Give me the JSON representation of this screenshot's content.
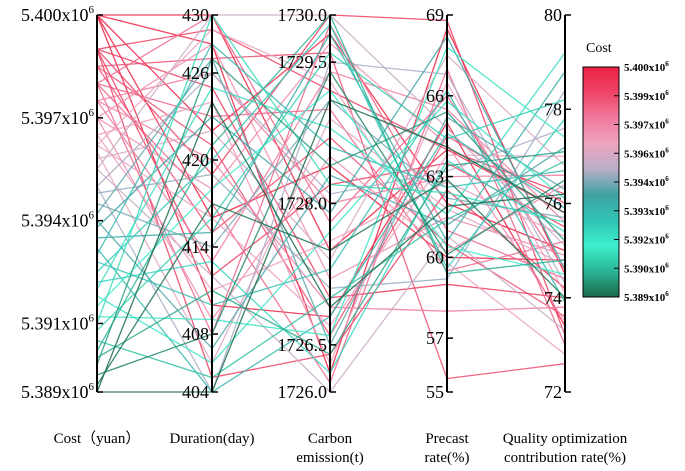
{
  "chart_data": {
    "type": "parallel_coordinates",
    "title": "",
    "axes": [
      {
        "name": "cost",
        "label_lines": [
          "Cost（yuan）"
        ],
        "min": 5.389,
        "max": 5.4,
        "ticks": [
          {
            "value": 5.4,
            "base": "5.400x10",
            "exp": "6"
          },
          {
            "value": 5.397,
            "base": "5.397x10",
            "exp": "6"
          },
          {
            "value": 5.394,
            "base": "5.394x10",
            "exp": "6"
          },
          {
            "value": 5.391,
            "base": "5.391x10",
            "exp": "6"
          },
          {
            "value": 5.389,
            "base": "5.389x10",
            "exp": "6"
          }
        ]
      },
      {
        "name": "duration",
        "label_lines": [
          "Duration(day)"
        ],
        "min": 404,
        "max": 430,
        "ticks": [
          {
            "value": 430,
            "text": "430"
          },
          {
            "value": 426,
            "text": "426"
          },
          {
            "value": 420,
            "text": "420"
          },
          {
            "value": 414,
            "text": "414"
          },
          {
            "value": 408,
            "text": "408"
          },
          {
            "value": 404,
            "text": "404"
          }
        ]
      },
      {
        "name": "carbon",
        "label_lines": [
          "Carbon",
          "emission(t)"
        ],
        "min": 1726.0,
        "max": 1730.0,
        "ticks": [
          {
            "value": 1730.0,
            "text": "1730.0"
          },
          {
            "value": 1729.5,
            "text": "1729.5"
          },
          {
            "value": 1728.0,
            "text": "1728.0"
          },
          {
            "value": 1726.5,
            "text": "1726.5"
          },
          {
            "value": 1726.0,
            "text": "1726.0"
          }
        ]
      },
      {
        "name": "precast",
        "label_lines": [
          "Precast",
          "rate(%)"
        ],
        "min": 55,
        "max": 69,
        "ticks": [
          {
            "value": 69,
            "text": "69"
          },
          {
            "value": 66,
            "text": "66"
          },
          {
            "value": 63,
            "text": "63"
          },
          {
            "value": 60,
            "text": "60"
          },
          {
            "value": 57,
            "text": "57"
          },
          {
            "value": 55,
            "text": "55"
          }
        ]
      },
      {
        "name": "quality",
        "label_lines": [
          "Quality optimization",
          "contribution rate(%)"
        ],
        "min": 72,
        "max": 80,
        "ticks": [
          {
            "value": 80,
            "text": "80"
          },
          {
            "value": 78,
            "text": "78"
          },
          {
            "value": 76,
            "text": "76"
          },
          {
            "value": 74,
            "text": "74"
          },
          {
            "value": 72,
            "text": "72"
          }
        ]
      }
    ],
    "colorbar": {
      "title": "Cost",
      "labels": [
        {
          "base": "5.400x10",
          "exp": "6"
        },
        {
          "base": "5.399x10",
          "exp": "6"
        },
        {
          "base": "5.397x10",
          "exp": "6"
        },
        {
          "base": "5.396x10",
          "exp": "6"
        },
        {
          "base": "5.394x10",
          "exp": "6"
        },
        {
          "base": "5.393x10",
          "exp": "6"
        },
        {
          "base": "5.392x10",
          "exp": "6"
        },
        {
          "base": "5.390x10",
          "exp": "6"
        },
        {
          "base": "5.389x10",
          "exp": "6"
        }
      ],
      "stops": [
        "#ee2244",
        "#ee4466",
        "#f07a9e",
        "#f0a4c0",
        "#b8aec8",
        "#3fa3a3",
        "#2fc4b4",
        "#3ef0cc",
        "#2ab496",
        "#1a6a4a"
      ]
    },
    "series": [
      {
        "values": [
          5.4,
          430,
          1727.5,
          64,
          75.8
        ]
      },
      {
        "values": [
          5.4,
          428,
          1726.2,
          68.5,
          74.5
        ]
      },
      {
        "values": [
          5.4,
          422,
          1729.8,
          62,
          75
        ]
      },
      {
        "values": [
          5.4,
          416,
          1728.4,
          60,
          74.8
        ]
      },
      {
        "values": [
          5.4,
          410,
          1726.8,
          65,
          73.4
        ]
      },
      {
        "values": [
          5.399,
          429,
          1729.2,
          64,
          76.2
        ]
      },
      {
        "values": [
          5.399,
          425,
          1727,
          59,
          74
        ]
      },
      {
        "values": [
          5.399,
          419,
          1730,
          68.8,
          73.2
        ]
      },
      {
        "values": [
          5.399,
          412,
          1728.2,
          63.5,
          75.5
        ]
      },
      {
        "values": [
          5.399,
          405,
          1726.4,
          62.5,
          74.2
        ]
      },
      {
        "values": [
          5.3985,
          427,
          1729.6,
          55.5,
          72.6
        ]
      },
      {
        "values": [
          5.3985,
          421,
          1726.6,
          64.5,
          76
        ]
      },
      {
        "values": [
          5.3985,
          415,
          1728.7,
          60.5,
          73.6
        ]
      },
      {
        "values": [
          5.398,
          430,
          1727.8,
          66,
          74.6
        ]
      },
      {
        "values": [
          5.398,
          423,
          1729,
          59.5,
          75.2
        ]
      },
      {
        "values": [
          5.398,
          417,
          1726.1,
          67,
          73
        ]
      },
      {
        "values": [
          5.398,
          408,
          1729.9,
          61,
          74.4
        ]
      },
      {
        "values": [
          5.3975,
          426,
          1728,
          63,
          76.6
        ]
      },
      {
        "values": [
          5.3975,
          420,
          1726.9,
          58,
          73.8
        ]
      },
      {
        "values": [
          5.3975,
          413,
          1729.4,
          65.5,
          75.6
        ]
      },
      {
        "values": [
          5.397,
          428,
          1727.2,
          61.5,
          74.9
        ]
      },
      {
        "values": [
          5.397,
          418,
          1729.7,
          64.2,
          73.5
        ]
      },
      {
        "values": [
          5.397,
          409,
          1728.5,
          60.2,
          76.4
        ]
      },
      {
        "values": [
          5.3965,
          424,
          1726.3,
          66.5,
          74.1
        ]
      },
      {
        "values": [
          5.3965,
          411,
          1727.6,
          62.8,
          75.3
        ]
      },
      {
        "values": [
          5.3962,
          429,
          1729.3,
          59.8,
          72.8
        ]
      },
      {
        "values": [
          5.3962,
          416,
          1726.7,
          63.8,
          77
        ]
      },
      {
        "values": [
          5.396,
          406,
          1728.9,
          61.8,
          74.7
        ]
      },
      {
        "values": [
          5.3958,
          422,
          1727.4,
          67.5,
          76.8
        ]
      },
      {
        "values": [
          5.3955,
          430,
          1730,
          64.8,
          75.1
        ]
      },
      {
        "values": [
          5.3955,
          412,
          1726,
          60.8,
          73.3
        ]
      },
      {
        "values": [
          5.395,
          426,
          1728.1,
          63.2,
          77.6
        ]
      },
      {
        "values": [
          5.395,
          404,
          1729.5,
          66.8,
          74.3
        ]
      },
      {
        "values": [
          5.3948,
          419,
          1727.1,
          59.2,
          78.4
        ]
      },
      {
        "values": [
          5.3945,
          414,
          1729.1,
          62.2,
          75.7
        ]
      },
      {
        "values": [
          5.3942,
          427,
          1726.5,
          65.2,
          76.3
        ]
      },
      {
        "values": [
          5.394,
          407,
          1728.3,
          61.2,
          77.2
        ]
      },
      {
        "values": [
          5.3938,
          423,
          1727.9,
          68.2,
          74.6
        ]
      },
      {
        "values": [
          5.3935,
          415,
          1729.8,
          60.6,
          78.8
        ]
      },
      {
        "values": [
          5.3932,
          404,
          1726.8,
          64.6,
          75.9
        ]
      },
      {
        "values": [
          5.393,
          428,
          1728.6,
          62.6,
          76.7
        ]
      },
      {
        "values": [
          5.3928,
          410,
          1727.3,
          66.2,
          73.9
        ]
      },
      {
        "values": [
          5.3925,
          420,
          1729.9,
          59.6,
          77.8
        ]
      },
      {
        "values": [
          5.3922,
          413,
          1726.2,
          63.6,
          75.4
        ]
      },
      {
        "values": [
          5.392,
          425,
          1728.8,
          61.6,
          79.2
        ]
      },
      {
        "values": [
          5.3918,
          406,
          1727.7,
          65.8,
          76.1
        ]
      },
      {
        "values": [
          5.3915,
          418,
          1729.2,
          60.4,
          74.5
        ]
      },
      {
        "values": [
          5.3912,
          409,
          1726.6,
          67.8,
          77.4
        ]
      },
      {
        "values": [
          5.391,
          430,
          1728.2,
          62.4,
          75.6
        ]
      },
      {
        "values": [
          5.3908,
          416,
          1729.6,
          64.4,
          78.2
        ]
      },
      {
        "values": [
          5.3905,
          405,
          1727,
          61.4,
          76.9
        ]
      },
      {
        "values": [
          5.3902,
          421,
          1730,
          59.4,
          74.8
        ]
      },
      {
        "values": [
          5.39,
          411,
          1726.4,
          63.4,
          77.1
        ]
      },
      {
        "values": [
          5.3898,
          427,
          1728.4,
          65.4,
          75.2
        ]
      },
      {
        "values": [
          5.3895,
          408,
          1729.4,
          60.1,
          76.5
        ]
      },
      {
        "values": [
          5.3892,
          417,
          1727.5,
          62.9,
          74
        ]
      },
      {
        "values": [
          5.389,
          404,
          1729.1,
          64.1,
          75.8
        ]
      },
      {
        "values": [
          5.389,
          424,
          1726.9,
          61.9,
          76.2
        ]
      }
    ]
  }
}
